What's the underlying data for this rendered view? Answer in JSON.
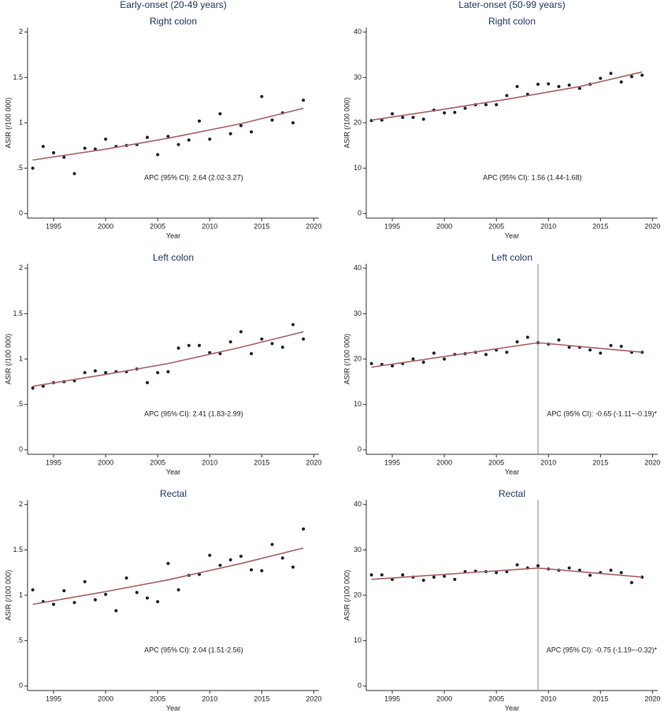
{
  "column_titles": [
    "Early-onset (20-49 years)",
    "Later-onset (50-99 years)"
  ],
  "chart_data": [
    {
      "type": "scatter",
      "title": "Right colon",
      "xlabel": "Year",
      "ylabel": "ASIR (/100 000)",
      "x": [
        1993,
        1994,
        1995,
        1996,
        1997,
        1998,
        1999,
        2000,
        2001,
        2002,
        2003,
        2004,
        2005,
        2006,
        2007,
        2008,
        2009,
        2010,
        2011,
        2012,
        2013,
        2014,
        2015,
        2016,
        2017,
        2018,
        2019
      ],
      "values": [
        0.5,
        0.74,
        0.67,
        0.62,
        0.44,
        0.72,
        0.71,
        0.82,
        0.74,
        0.75,
        0.76,
        0.84,
        0.65,
        0.85,
        0.76,
        0.81,
        1.02,
        0.82,
        1.1,
        0.88,
        0.97,
        0.9,
        1.29,
        1.03,
        1.11,
        1.0,
        1.25
      ],
      "color": "#1a1f3a",
      "fit": {
        "x": [
          1993,
          2000,
          2006,
          2013,
          2019
        ],
        "values": [
          0.59,
          0.71,
          0.83,
          0.99,
          1.16
        ],
        "color": "#a86464"
      },
      "xlim": [
        1992.5,
        2020.5
      ],
      "ylim": [
        -0.05,
        2.05
      ],
      "xticks": [
        1995,
        2000,
        2005,
        2010,
        2015,
        2020
      ],
      "yticks": [
        0,
        {
          "value": 0.5,
          "label": ".5"
        },
        1,
        1.5,
        2
      ],
      "annotation": "APC (95% CI): 2.64 (2.02-3.27)"
    },
    {
      "type": "scatter",
      "title": "Right colon",
      "xlabel": "Year",
      "ylabel": "ASIR (/100 000)",
      "x": [
        1993,
        1994,
        1995,
        1996,
        1997,
        1998,
        1999,
        2000,
        2001,
        2002,
        2003,
        2004,
        2005,
        2006,
        2007,
        2008,
        2009,
        2010,
        2011,
        2012,
        2013,
        2014,
        2015,
        2016,
        2017,
        2018,
        2019
      ],
      "values": [
        20.5,
        20.6,
        22.0,
        21.2,
        21.2,
        20.8,
        22.8,
        22.2,
        22.3,
        23.2,
        24.0,
        24.0,
        24.0,
        26.0,
        28.0,
        26.3,
        28.5,
        28.6,
        28.0,
        28.3,
        27.6,
        28.5,
        29.8,
        30.9,
        29.0,
        30.2,
        30.5
      ],
      "color": "#1a1f3a",
      "fit": {
        "x": [
          1993,
          2000,
          2006,
          2013,
          2019
        ],
        "values": [
          20.6,
          23.0,
          25.2,
          28.0,
          31.2
        ],
        "color": "#a86464"
      },
      "xlim": [
        1992.5,
        2020.5
      ],
      "ylim": [
        -1,
        41
      ],
      "xticks": [
        1995,
        2000,
        2005,
        2010,
        2015,
        2020
      ],
      "yticks": [
        0,
        10,
        20,
        30,
        40
      ],
      "annotation": "APC (95% CI): 1.56 (1.44-1.68)"
    },
    {
      "type": "scatter",
      "title": "Left colon",
      "xlabel": "Year",
      "ylabel": "ASIR (/100 000)",
      "x": [
        1993,
        1994,
        1995,
        1996,
        1997,
        1998,
        1999,
        2000,
        2001,
        2002,
        2003,
        2004,
        2005,
        2006,
        2007,
        2008,
        2009,
        2010,
        2011,
        2012,
        2013,
        2014,
        2015,
        2016,
        2017,
        2018,
        2019
      ],
      "values": [
        0.68,
        0.7,
        0.74,
        0.75,
        0.76,
        0.85,
        0.87,
        0.85,
        0.86,
        0.86,
        0.89,
        0.74,
        0.85,
        0.86,
        1.12,
        1.15,
        1.15,
        1.07,
        1.06,
        1.19,
        1.3,
        1.06,
        1.22,
        1.17,
        1.13,
        1.38,
        1.22
      ],
      "color": "#1a1f3a",
      "fit": {
        "x": [
          1993,
          2000,
          2006,
          2013,
          2019
        ],
        "values": [
          0.7,
          0.83,
          0.95,
          1.13,
          1.3
        ],
        "color": "#a86464"
      },
      "xlim": [
        1992.5,
        2020.5
      ],
      "ylim": [
        -0.05,
        2.05
      ],
      "xticks": [
        1995,
        2000,
        2005,
        2010,
        2015,
        2020
      ],
      "yticks": [
        0,
        {
          "value": 0.5,
          "label": ".5"
        },
        1,
        1.5,
        2
      ],
      "annotation": "APC (95% CI): 2.41 (1.83-2.99)"
    },
    {
      "type": "scatter",
      "title": "Left colon",
      "xlabel": "Year",
      "ylabel": "ASIR (/100 000)",
      "x": [
        1993,
        1994,
        1995,
        1996,
        1997,
        1998,
        1999,
        2000,
        2001,
        2002,
        2003,
        2004,
        2005,
        2006,
        2007,
        2008,
        2009,
        2010,
        2011,
        2012,
        2013,
        2014,
        2015,
        2016,
        2017,
        2018,
        2019
      ],
      "values": [
        19.0,
        18.8,
        18.5,
        19.0,
        20.0,
        19.3,
        21.3,
        20.0,
        21.0,
        21.2,
        21.5,
        21.0,
        22.0,
        21.5,
        23.8,
        24.8,
        23.6,
        23.3,
        24.2,
        22.6,
        22.6,
        22.0,
        21.3,
        23.0,
        22.8,
        21.5,
        21.5
      ],
      "color": "#1a1f3a",
      "fit": {
        "x": [
          1993,
          2009,
          2019
        ],
        "values": [
          18.2,
          23.6,
          21.5
        ],
        "color": "#a86464"
      },
      "vline": 2009,
      "vline_color": "#9a9a9a",
      "xlim": [
        1992.5,
        2020.5
      ],
      "ylim": [
        -1,
        41
      ],
      "xticks": [
        1995,
        2000,
        2005,
        2010,
        2015,
        2020
      ],
      "yticks": [
        0,
        10,
        20,
        30,
        40
      ],
      "annotation": "APC (95% CI): -0.65 (-1.11~-0.19)*"
    },
    {
      "type": "scatter",
      "title": "Rectal",
      "xlabel": "Year",
      "ylabel": "ASIR (/100 000)",
      "x": [
        1993,
        1994,
        1995,
        1996,
        1997,
        1998,
        1999,
        2000,
        2001,
        2002,
        2003,
        2004,
        2005,
        2006,
        2007,
        2008,
        2009,
        2010,
        2011,
        2012,
        2013,
        2014,
        2015,
        2016,
        2017,
        2018,
        2019
      ],
      "values": [
        1.06,
        0.93,
        0.9,
        1.05,
        0.92,
        1.15,
        0.95,
        1.01,
        0.83,
        1.19,
        1.03,
        0.97,
        0.93,
        1.35,
        1.06,
        1.22,
        1.23,
        1.44,
        1.33,
        1.39,
        1.43,
        1.28,
        1.27,
        1.56,
        1.41,
        1.31,
        1.73
      ],
      "color": "#1a1f3a",
      "fit": {
        "x": [
          1993,
          2000,
          2006,
          2013,
          2019
        ],
        "values": [
          0.9,
          1.04,
          1.17,
          1.35,
          1.52
        ],
        "color": "#a86464"
      },
      "xlim": [
        1992.5,
        2020.5
      ],
      "ylim": [
        -0.05,
        2.05
      ],
      "xticks": [
        1995,
        2000,
        2005,
        2010,
        2015,
        2020
      ],
      "yticks": [
        0,
        {
          "value": 0.5,
          "label": ".5"
        },
        1,
        1.5,
        2
      ],
      "annotation": "APC (95% CI): 2.04 (1.51-2.56)"
    },
    {
      "type": "scatter",
      "title": "Rectal",
      "xlabel": "Year",
      "ylabel": "ASIR (/100 000)",
      "x": [
        1993,
        1994,
        1995,
        1996,
        1997,
        1998,
        1999,
        2000,
        2001,
        2002,
        2003,
        2004,
        2005,
        2006,
        2007,
        2008,
        2009,
        2010,
        2011,
        2012,
        2013,
        2014,
        2015,
        2016,
        2017,
        2018,
        2019
      ],
      "values": [
        24.5,
        24.5,
        23.5,
        24.5,
        24.0,
        23.3,
        24.0,
        24.2,
        23.5,
        25.2,
        25.3,
        25.2,
        25.0,
        25.2,
        26.7,
        26.0,
        26.5,
        25.8,
        25.5,
        26.0,
        25.5,
        24.4,
        25.0,
        25.5,
        25.0,
        22.8,
        24.0
      ],
      "color": "#1a1f3a",
      "fit": {
        "x": [
          1993,
          2009,
          2019
        ],
        "values": [
          23.5,
          26.0,
          24.0
        ],
        "color": "#a86464"
      },
      "vline": 2009,
      "vline_color": "#9a9a9a",
      "xlim": [
        1992.5,
        2020.5
      ],
      "ylim": [
        -1,
        41
      ],
      "xticks": [
        1995,
        2000,
        2005,
        2010,
        2015,
        2020
      ],
      "yticks": [
        0,
        10,
        20,
        30,
        40
      ],
      "annotation": "APC (95% CI): -0.75 (-1.19~-0.32)*"
    }
  ]
}
